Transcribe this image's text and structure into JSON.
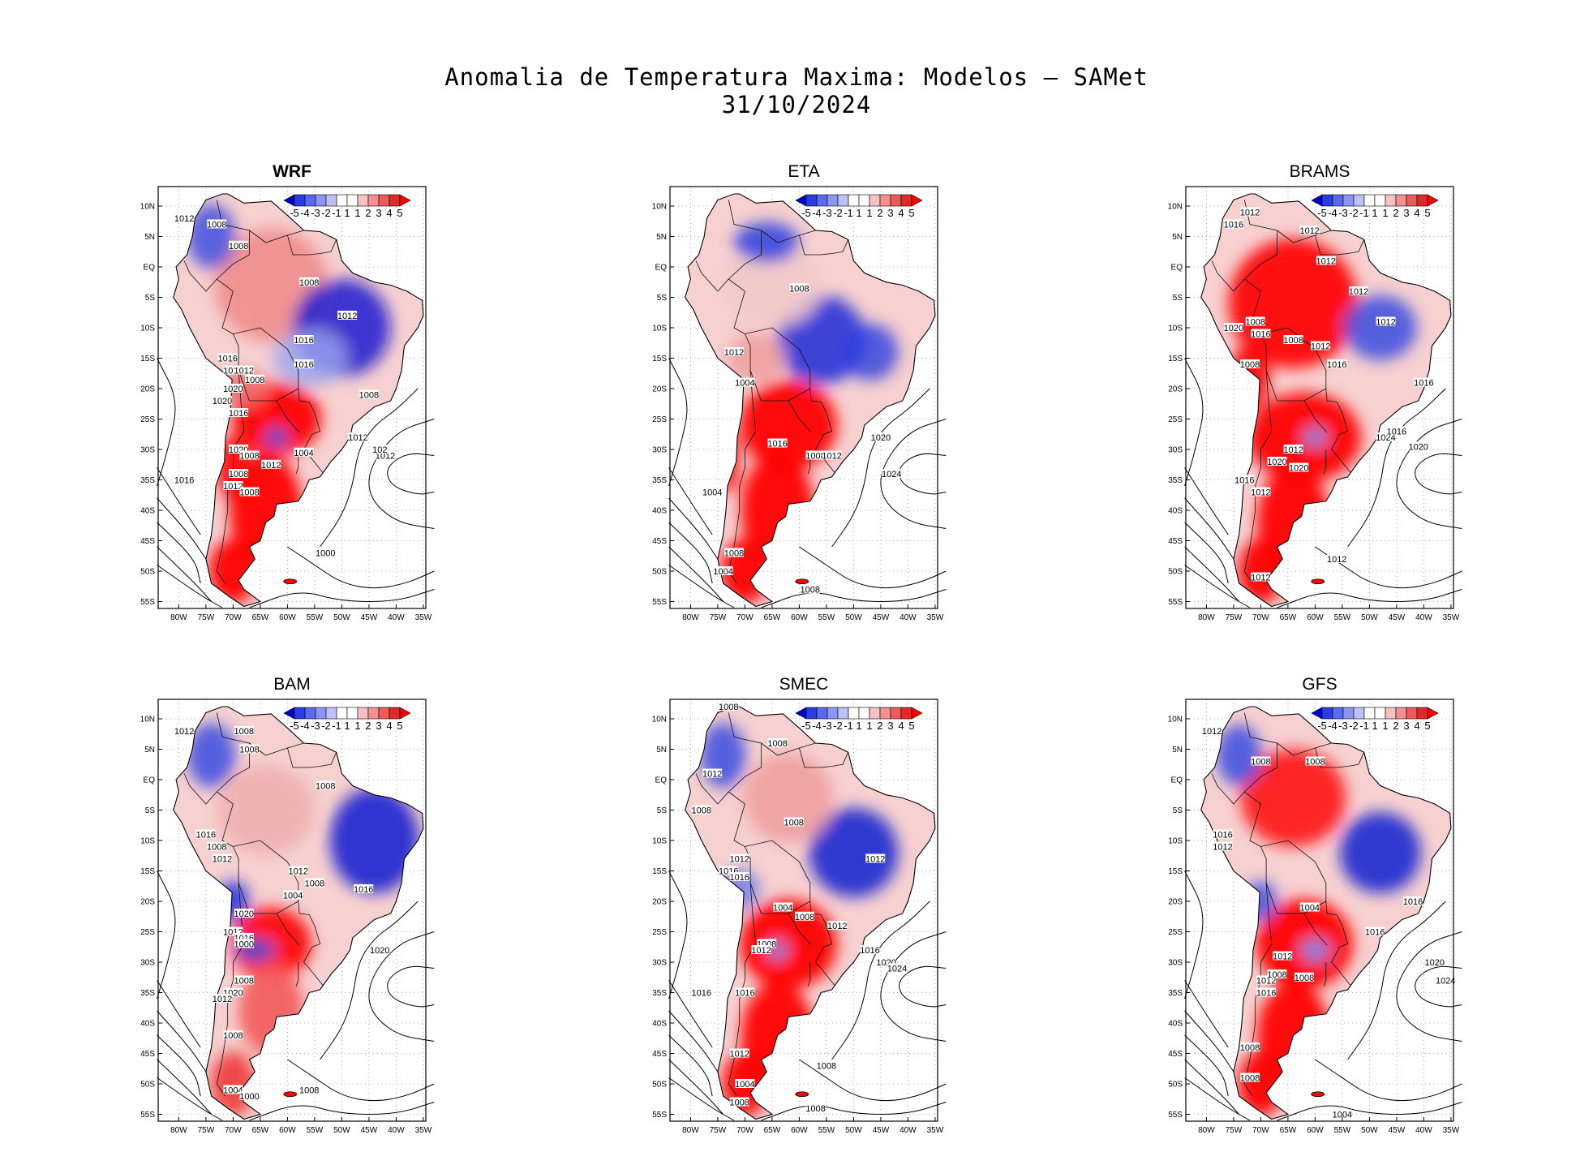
{
  "figure": {
    "title_line1": "Anomalia de Temperatura Maxima: Modelos — SAMet",
    "title_line2": "31/10/2024"
  },
  "axes": {
    "lat_labels": [
      "10N",
      "5N",
      "EQ",
      "5S",
      "10S",
      "15S",
      "20S",
      "25S",
      "30S",
      "35S",
      "40S",
      "45S",
      "50S",
      "55S"
    ],
    "lon_labels": [
      "80W",
      "75W",
      "70W",
      "65W",
      "60W",
      "55W",
      "50W",
      "45W",
      "40W",
      "35W"
    ]
  },
  "colorbar": {
    "labels": [
      "-5",
      "-4",
      "-3",
      "-2",
      "-1",
      "1",
      "1",
      "2",
      "3",
      "4",
      "5"
    ],
    "colors": [
      "#0000c8",
      "#2a3ee0",
      "#5a6aee",
      "#8c95f2",
      "#bcc2f7",
      "#ffffff",
      "#ffffff",
      "#f7c1c1",
      "#f28f8f",
      "#ee5a5a",
      "#e02a2a",
      "#ff0000"
    ]
  },
  "panels": [
    {
      "name": "WRF",
      "isobars": [
        "1012",
        "1008",
        "1008",
        "1008",
        "1012",
        "1016",
        "1016",
        "1012",
        "1008",
        "1016",
        "1016",
        "1020",
        "1020",
        "1016",
        "1020",
        "1008",
        "1012",
        "1008",
        "1016",
        "1012",
        "1008",
        "1000",
        "1008",
        "1004",
        "1012",
        "1012",
        "102"
      ]
    },
    {
      "name": "ETA",
      "isobars": [
        "1008",
        "1004",
        "1012",
        "1016",
        "1020",
        "1008",
        "1024",
        "1004",
        "1012",
        "1008",
        "1004",
        "1008"
      ]
    },
    {
      "name": "BRAMS",
      "isobars": [
        "1012",
        "1016",
        "1012",
        "1012",
        "1012",
        "1012",
        "1008",
        "1020",
        "1016",
        "1008",
        "1012",
        "1016",
        "1008",
        "1016",
        "1012",
        "1020",
        "1020",
        "1024",
        "1016",
        "1020",
        "1016",
        "1012",
        "1012",
        "1012"
      ]
    },
    {
      "name": "BAM",
      "isobars": [
        "1012",
        "1008",
        "1008",
        "1008",
        "1016",
        "1008",
        "1012",
        "1012",
        "1008",
        "1004",
        "1016",
        "1020",
        "1012",
        "1016",
        "1000",
        "1020",
        "1008",
        "1020",
        "1012",
        "1008",
        "1004",
        "1000",
        "1008"
      ]
    },
    {
      "name": "SMEC",
      "isobars": [
        "1008",
        "1008",
        "1012",
        "1008",
        "1008",
        "1012",
        "1016",
        "1016",
        "1012",
        "1004",
        "1008",
        "1012",
        "1016",
        "1008",
        "1012",
        "1020",
        "1024",
        "1016",
        "1016",
        "1012",
        "1004",
        "1008",
        "1008",
        "1008"
      ]
    },
    {
      "name": "GFS",
      "isobars": [
        "1012",
        "1008",
        "1008",
        "1016",
        "1012",
        "1004",
        "1012",
        "1016",
        "1012",
        "1008",
        "1008",
        "1020",
        "1024",
        "1016",
        "1016",
        "1008",
        "1008",
        "1004"
      ]
    }
  ]
}
